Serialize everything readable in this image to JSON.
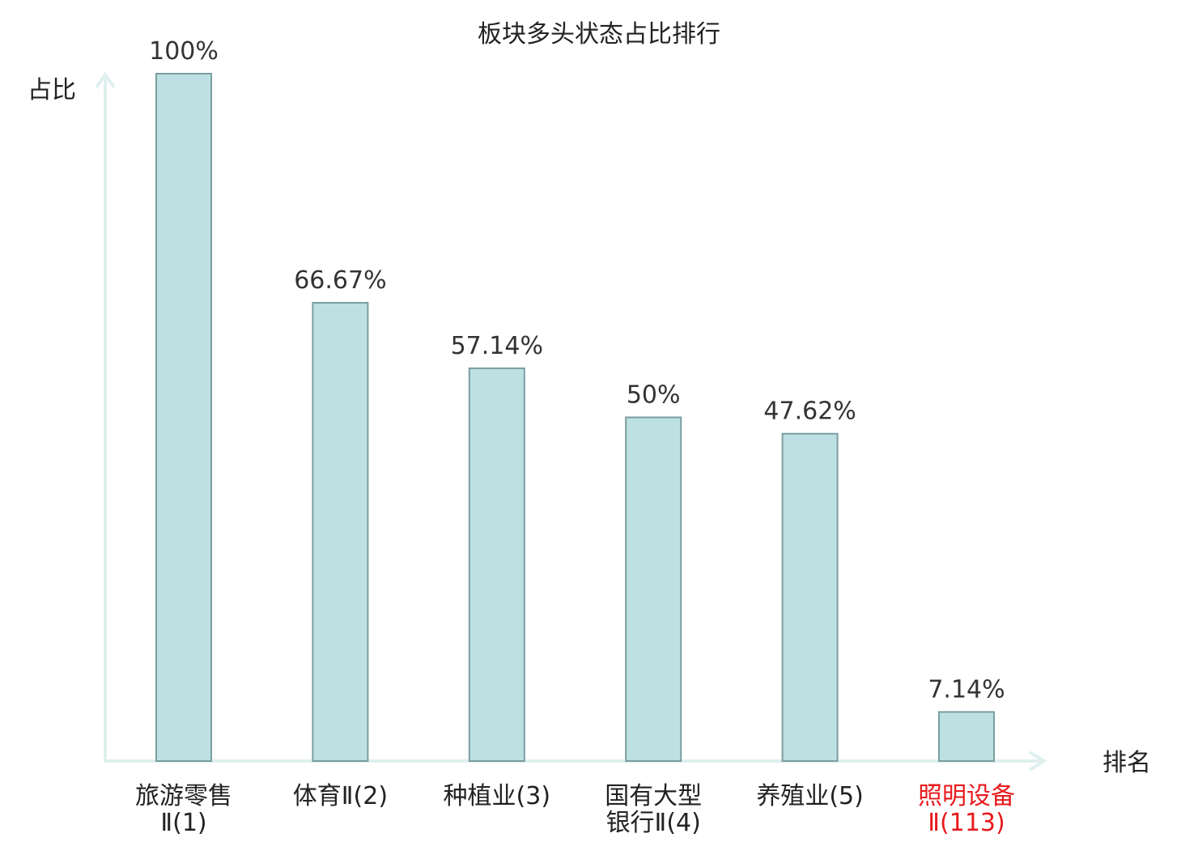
{
  "chart_data": {
    "type": "bar",
    "title": "板块多头状态占比排行",
    "ylabel": "占比",
    "xlabel": "排名",
    "ylim": [
      0,
      100
    ],
    "grid": false,
    "categories": [
      {
        "lines": [
          "旅游零售",
          "Ⅱ(1)"
        ],
        "highlight": false
      },
      {
        "lines": [
          "体育Ⅱ(2)"
        ],
        "highlight": false
      },
      {
        "lines": [
          "种植业(3)"
        ],
        "highlight": false
      },
      {
        "lines": [
          "国有大型",
          "银行Ⅱ(4)"
        ],
        "highlight": false
      },
      {
        "lines": [
          "养殖业(5)"
        ],
        "highlight": false
      },
      {
        "lines": [
          "照明设备",
          "Ⅱ(113)"
        ],
        "highlight": true
      }
    ],
    "values": [
      100,
      66.67,
      57.14,
      50,
      47.62,
      7.14
    ],
    "value_labels": [
      "100%",
      "66.67%",
      "57.14%",
      "50%",
      "47.62%",
      "7.14%"
    ],
    "colors": {
      "bar_fill": "#bde0e2",
      "bar_stroke": "#7a9ea0",
      "axis": "#dff0ee",
      "highlight_text": "#e8191c"
    }
  }
}
